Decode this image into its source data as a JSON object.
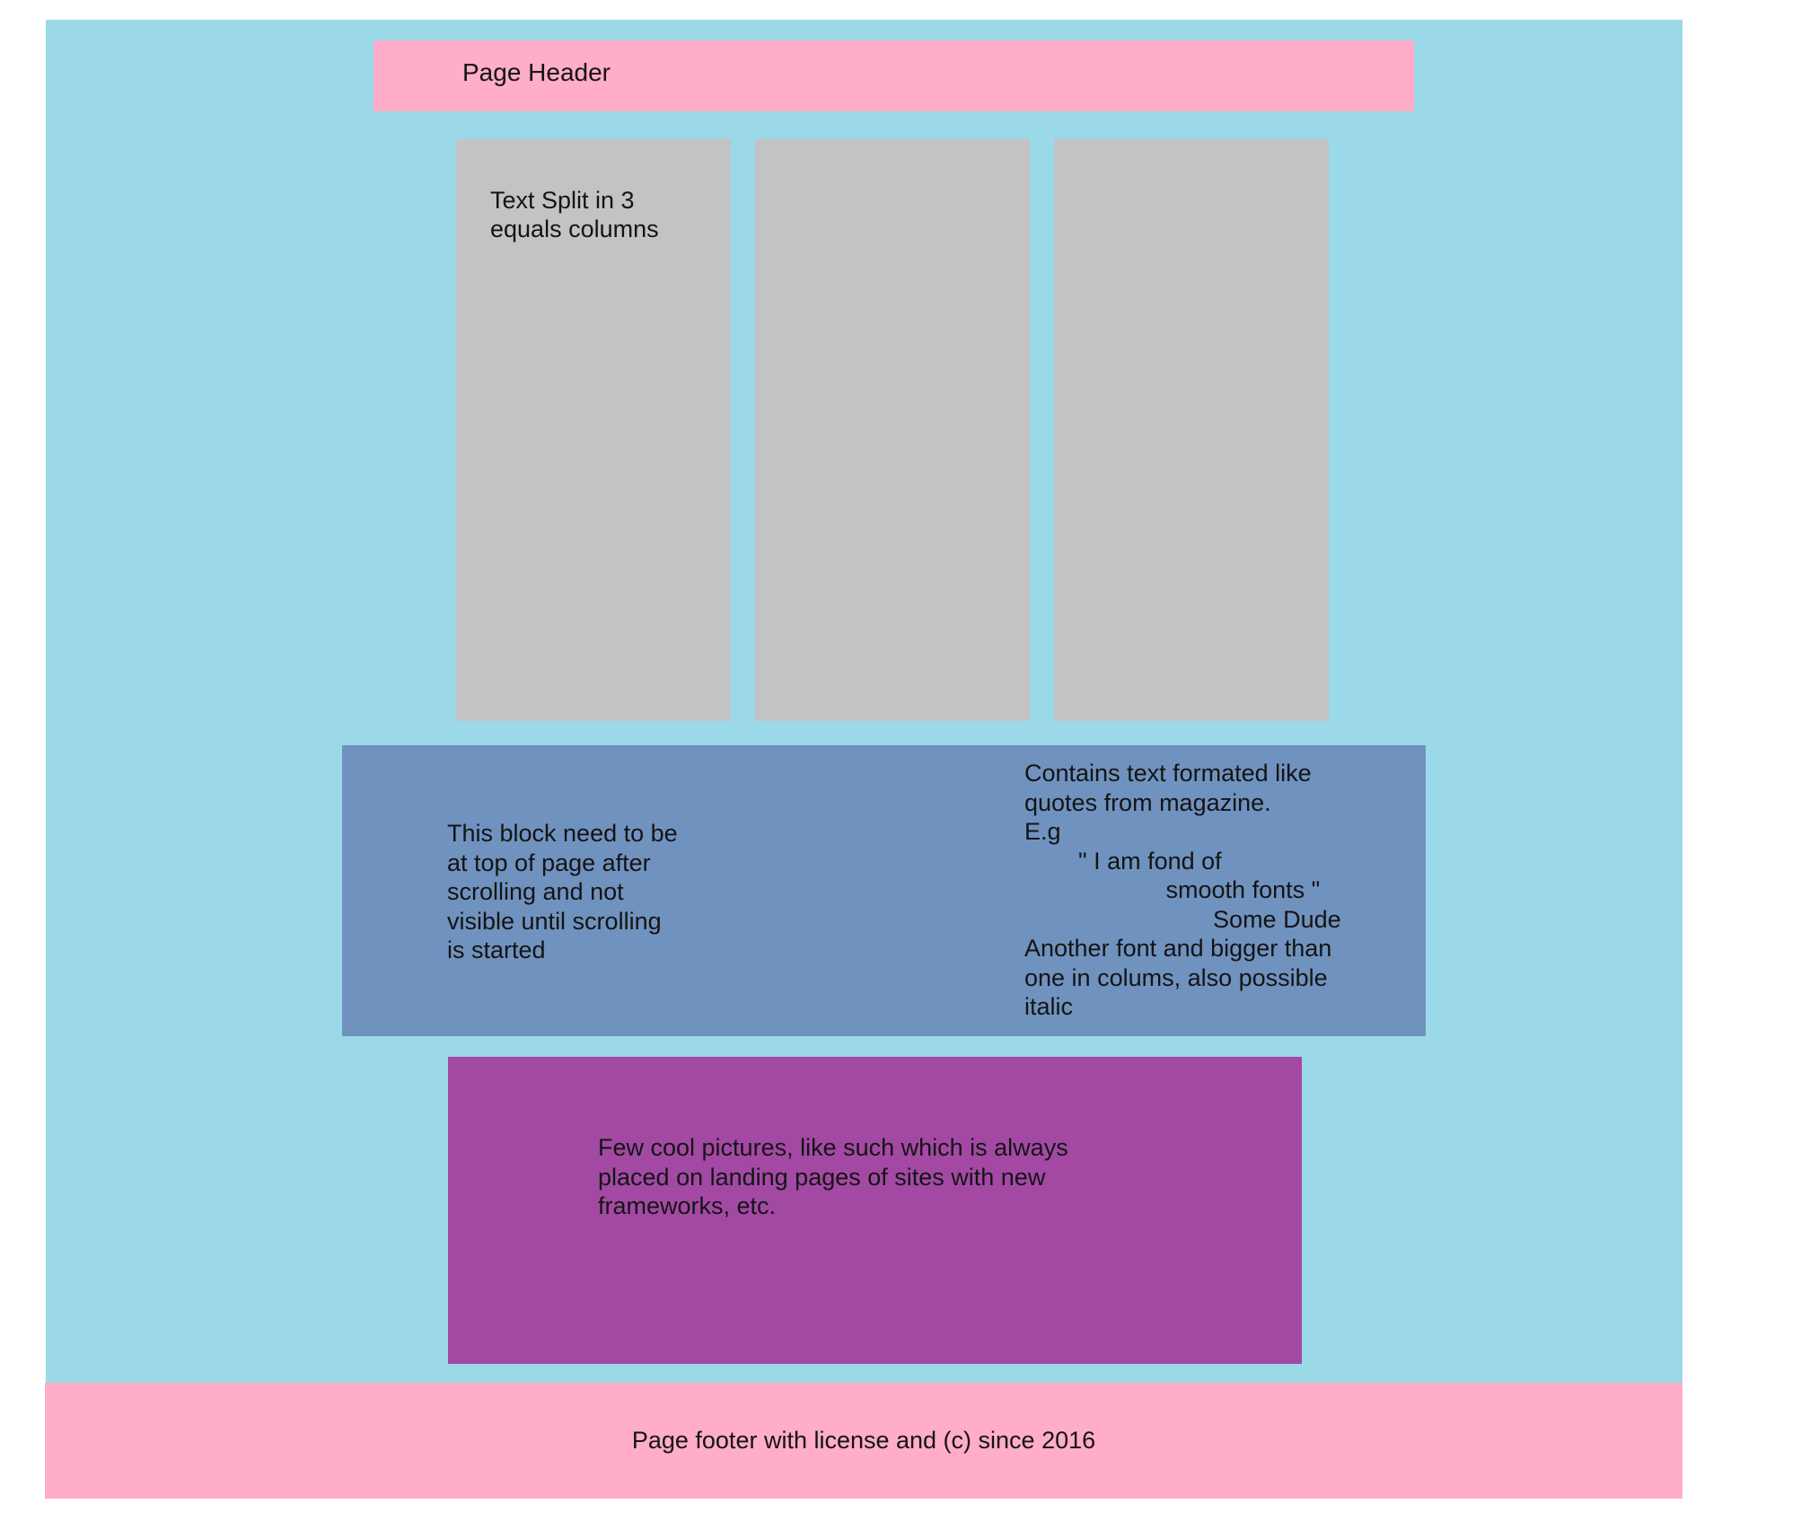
{
  "header": {
    "title": "Page Header"
  },
  "columns": [
    {
      "text": "Text Split in 3\nequals columns"
    },
    {
      "text": ""
    },
    {
      "text": ""
    }
  ],
  "sticky_block": {
    "text": "This block need to be\nat top of page after\nscrolling and not\nvisible until scrolling\nis started"
  },
  "quote_block": {
    "text": "Contains text formated like\nquotes from magazine.\nE.g\n        \" I am fond of\n                     smooth fonts \"\n                            Some Dude\nAnother font and bigger than\none in colums, also possible\nitalic"
  },
  "pictures": {
    "text": "Few cool pictures, like such which is always\nplaced on landing pages of sites with new\nframeworks, etc."
  },
  "footer": {
    "text": "Page footer with license and (c) since 2016"
  },
  "colors": {
    "page_background": "#9bd9e8",
    "header_footer": "#ffadc9",
    "columns": "#c3c3c3",
    "sticky_block": "#7092bf",
    "pictures_block": "#a349a4"
  }
}
